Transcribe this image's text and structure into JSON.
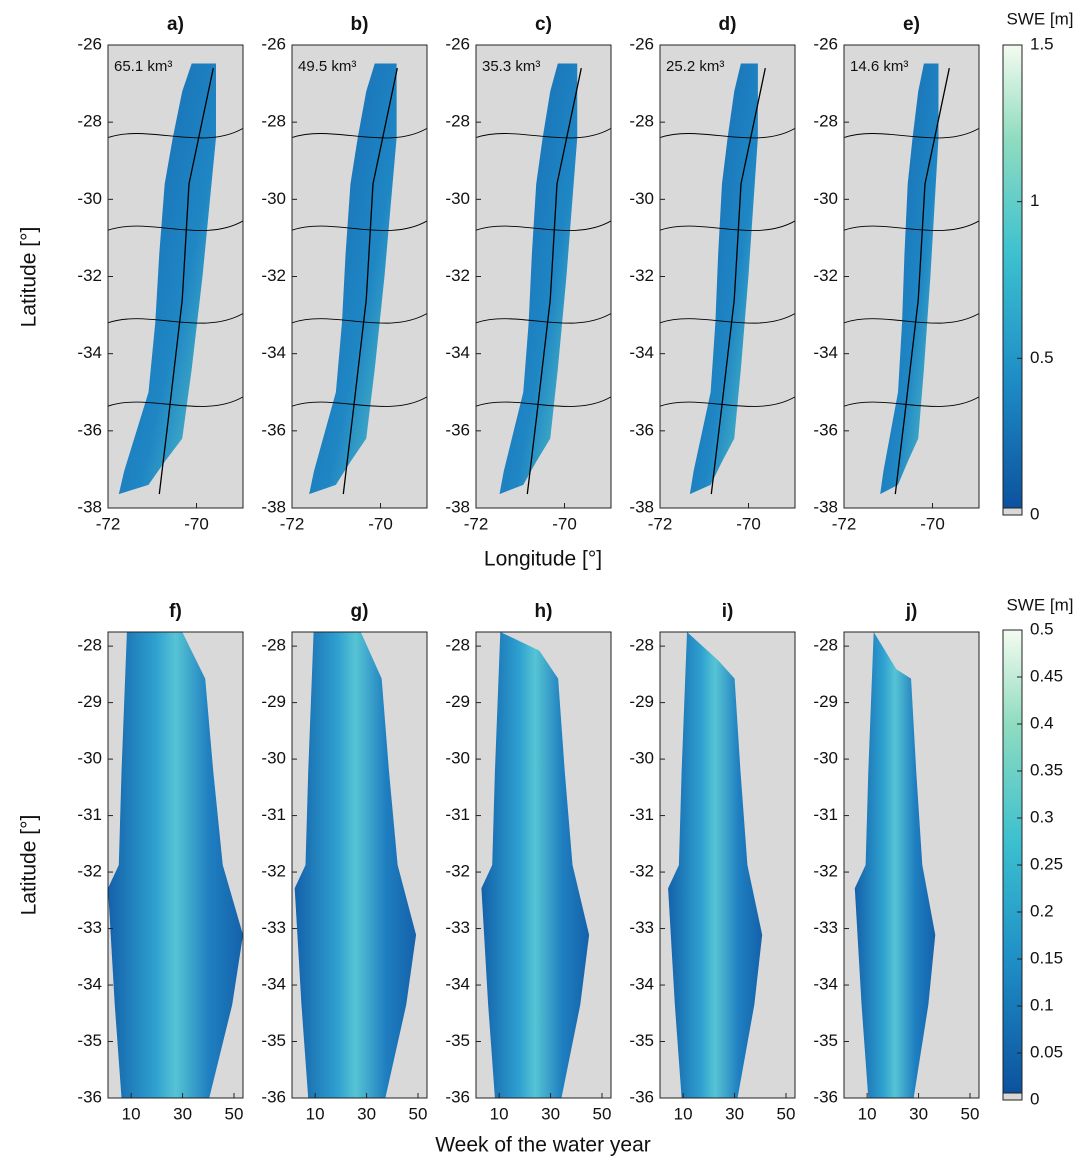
{
  "chart_data": [
    {
      "type": "map",
      "panels": [
        {
          "title": "a)",
          "annotation": "65.1 km³"
        },
        {
          "title": "b)",
          "annotation": "49.5 km³"
        },
        {
          "title": "c)",
          "annotation": "35.3 km³"
        },
        {
          "title": "d)",
          "annotation": "25.2 km³"
        },
        {
          "title": "e)",
          "annotation": "14.6 km³"
        }
      ],
      "xlim": [
        -72,
        -68.95
      ],
      "xticks": [
        -72,
        -70
      ],
      "ylim": [
        -38,
        -26
      ],
      "yticks": [
        -38,
        -36,
        -34,
        -32,
        -30,
        -28,
        -26
      ],
      "xlabel": "Longitude [°]",
      "ylabel": "Latitude [°]",
      "colorbar": {
        "title": "SWE [m]",
        "lim": [
          0,
          1.5
        ],
        "ticks": [
          0,
          0.5,
          1,
          1.5
        ]
      }
    },
    {
      "type": "heatmap",
      "panels": [
        {
          "title": "f)"
        },
        {
          "title": "g)"
        },
        {
          "title": "h)"
        },
        {
          "title": "i)"
        },
        {
          "title": "j)"
        }
      ],
      "xlim": [
        1,
        53.5
      ],
      "xticks": [
        10,
        30,
        50
      ],
      "ylim": [
        -36,
        -27.75
      ],
      "yticks": [
        -36,
        -35,
        -34,
        -33,
        -32,
        -31,
        -30,
        -29,
        -28
      ],
      "xlabel": "Week of the water year",
      "ylabel": "Latitude [°]",
      "colorbar": {
        "title": "SWE [m]",
        "lim": [
          0,
          0.5
        ],
        "ticks": [
          0,
          0.05,
          0.1,
          0.15,
          0.2,
          0.25,
          0.3,
          0.35,
          0.4,
          0.45,
          0.5
        ]
      }
    }
  ]
}
